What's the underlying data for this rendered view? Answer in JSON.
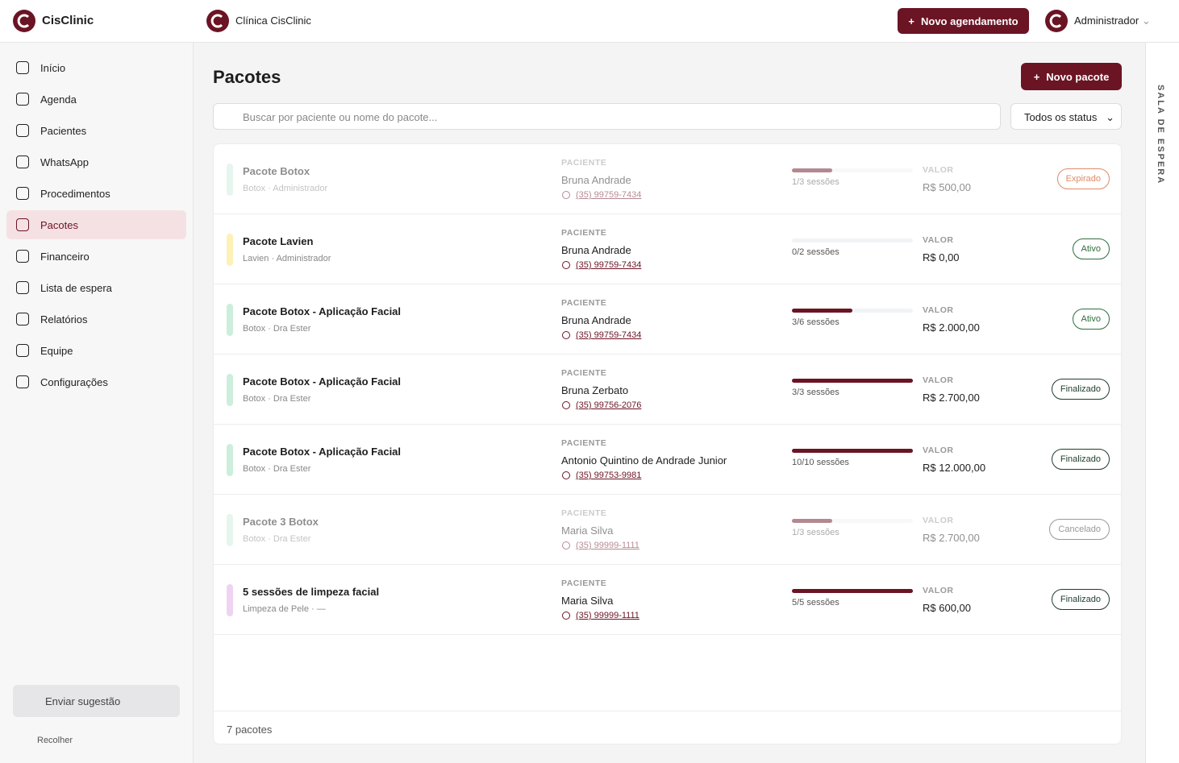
{
  "topbar": {
    "brand": "CisClinic",
    "clinic": "Clínica CisClinic",
    "new_appointment": "Novo agendamento",
    "user": "Administrador"
  },
  "sidebar": {
    "nav": [
      "Início",
      "Agenda",
      "Pacientes",
      "WhatsApp",
      "Procedimentos",
      "Pacotes",
      "Financeiro",
      "Lista de espera",
      "Relatórios",
      "Equipe",
      "Configurações"
    ],
    "active": 5,
    "suggest": "Enviar sugestão",
    "collapse": "Recolher"
  },
  "right_rail": {
    "label": "SALA DE ESPERA"
  },
  "page": {
    "title": "Pacotes",
    "new_package": "Novo pacote",
    "search_placeholder": "Buscar por paciente ou nome do pacote...",
    "status_filter": "Todos os status",
    "patient_heading": "PACIENTE",
    "value_heading": "VALOR",
    "footer": "7 pacotes"
  },
  "packages": [
    {
      "name": "Pacote Botox",
      "meta": "Botox · Administrador",
      "patient": "Bruna Andrade",
      "phone": "(35) 99759-7434",
      "sessions_done": 1,
      "sessions_total": 3,
      "sessions_label": "1/3 sessões",
      "value": "R$ 500,00",
      "status": "Expirado",
      "strip_color": "#cdeedd",
      "badge_color": "#e08a68",
      "faded": true
    },
    {
      "name": "Pacote Lavien",
      "meta": "Lavien · Administrador",
      "patient": "Bruna Andrade",
      "phone": "(35) 99759-7434",
      "sessions_done": 0,
      "sessions_total": 2,
      "sessions_label": "0/2 sessões",
      "value": "R$ 0,00",
      "status": "Ativo",
      "strip_color": "#fdf1b8",
      "badge_color": "#2f6e3f",
      "faded": false
    },
    {
      "name": "Pacote Botox - Aplicação Facial",
      "meta": "Botox · Dra Ester",
      "patient": "Bruna Andrade",
      "phone": "(35) 99759-7434",
      "sessions_done": 3,
      "sessions_total": 6,
      "sessions_label": "3/6 sessões",
      "value": "R$ 2.000,00",
      "status": "Ativo",
      "strip_color": "#cdeedd",
      "badge_color": "#2f6e3f",
      "faded": false
    },
    {
      "name": "Pacote Botox - Aplicação Facial",
      "meta": "Botox · Dra Ester",
      "patient": "Bruna Zerbato",
      "phone": "(35) 99756-2076",
      "sessions_done": 3,
      "sessions_total": 3,
      "sessions_label": "3/3 sessões",
      "value": "R$ 2.700,00",
      "status": "Finalizado",
      "strip_color": "#cdeedd",
      "badge_color": "#1f3d2e",
      "faded": false
    },
    {
      "name": "Pacote Botox - Aplicação Facial",
      "meta": "Botox · Dra Ester",
      "patient": "Antonio Quintino de Andrade Junior",
      "phone": "(35) 99753-9981",
      "sessions_done": 10,
      "sessions_total": 10,
      "sessions_label": "10/10 sessões",
      "value": "R$ 12.000,00",
      "status": "Finalizado",
      "strip_color": "#cdeedd",
      "badge_color": "#1f3d2e",
      "faded": false
    },
    {
      "name": "Pacote 3 Botox",
      "meta": "Botox · Dra Ester",
      "patient": "Maria Silva",
      "phone": "(35) 99999-1111",
      "sessions_done": 1,
      "sessions_total": 3,
      "sessions_label": "1/3 sessões",
      "value": "R$ 2.700,00",
      "status": "Cancelado",
      "strip_color": "#cdeedd",
      "badge_color": "#999999",
      "faded": true
    },
    {
      "name": "5 sessões de limpeza facial",
      "meta": "Limpeza de Pele · —",
      "patient": "Maria Silva",
      "phone": "(35) 99999-1111",
      "sessions_done": 5,
      "sessions_total": 5,
      "sessions_label": "5/5 sessões",
      "value": "R$ 600,00",
      "status": "Finalizado",
      "strip_color": "#efd3f3",
      "badge_color": "#1f3d2e",
      "faded": false
    }
  ]
}
